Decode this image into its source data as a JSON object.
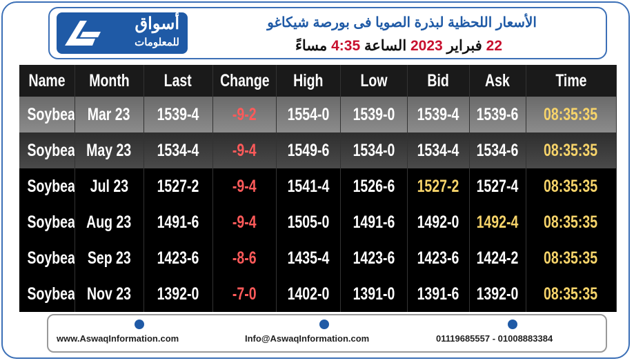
{
  "header": {
    "logo": {
      "name": "أسواق",
      "tagline": "للمعلومات"
    },
    "title": "الأسعار اللحظية لبذرة الصويا فى بورصة شيكاغو",
    "subtitle_parts": [
      "22",
      "فبراير",
      "2023",
      "الساعة",
      "4:35",
      "مساءً"
    ]
  },
  "table": {
    "columns": [
      "Name",
      "Month",
      "Last",
      "Change",
      "High",
      "Low",
      "Bid",
      "Ask",
      "Time"
    ],
    "rows": [
      [
        "Soybean",
        "Mar 23",
        "1539-4",
        "-9-2",
        "1554-0",
        "1539-0",
        "1539-4",
        "1539-6",
        "08:35:35"
      ],
      [
        "Soybean",
        "May 23",
        "1534-4",
        "-9-4",
        "1549-6",
        "1534-0",
        "1534-4",
        "1534-6",
        "08:35:35"
      ],
      [
        "Soybean",
        "Jul 23",
        "1527-2",
        "-9-4",
        "1541-4",
        "1526-6",
        "1527-2",
        "1527-4",
        "08:35:35"
      ],
      [
        "Soybean",
        "Aug 23",
        "1491-6",
        "-9-4",
        "1505-0",
        "1491-6",
        "1492-0",
        "1492-4",
        "08:35:35"
      ],
      [
        "Soybean",
        "Sep 23",
        "1423-6",
        "-8-6",
        "1435-4",
        "1423-6",
        "1423-6",
        "1424-2",
        "08:35:35"
      ],
      [
        "Soybean",
        "Nov 23",
        "1392-0",
        "-7-0",
        "1402-0",
        "1391-0",
        "1391-6",
        "1392-0",
        "08:35:35"
      ]
    ]
  },
  "footer": {
    "website": "www.AswaqInformation.com",
    "email": "Info@AswaqInformation.com",
    "phones": "01119685557 - 01008883384"
  }
}
